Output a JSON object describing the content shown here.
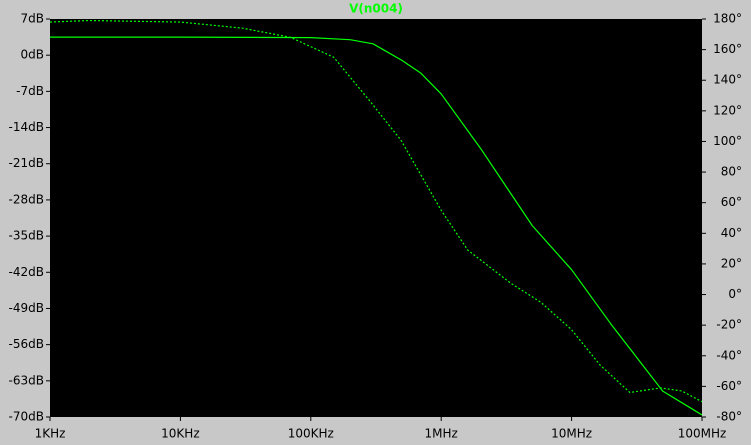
{
  "chart_data": {
    "type": "line",
    "title": "V(n004)",
    "xscale": "log",
    "xlim": [
      1000,
      100000000
    ],
    "xticks": [
      {
        "value": 1000,
        "label": "1KHz"
      },
      {
        "value": 10000,
        "label": "10KHz"
      },
      {
        "value": 100000,
        "label": "100KHz"
      },
      {
        "value": 1000000,
        "label": "1MHz"
      },
      {
        "value": 10000000,
        "label": "10MHz"
      },
      {
        "value": 100000000,
        "label": "100MHz"
      }
    ],
    "ylim": [
      -70,
      7
    ],
    "yticks": [
      {
        "value": 7,
        "label": "7dB"
      },
      {
        "value": 0,
        "label": "0dB"
      },
      {
        "value": -7,
        "label": "-7dB"
      },
      {
        "value": -14,
        "label": "-14dB"
      },
      {
        "value": -21,
        "label": "-21dB"
      },
      {
        "value": -28,
        "label": "-28dB"
      },
      {
        "value": -35,
        "label": "-35dB"
      },
      {
        "value": -42,
        "label": "-42dB"
      },
      {
        "value": -49,
        "label": "-49dB"
      },
      {
        "value": -56,
        "label": "-56dB"
      },
      {
        "value": -63,
        "label": "-63dB"
      },
      {
        "value": -70,
        "label": "-70dB"
      }
    ],
    "y2lim": [
      -80,
      180
    ],
    "y2ticks": [
      {
        "value": 180,
        "label": "180°"
      },
      {
        "value": 160,
        "label": "160°"
      },
      {
        "value": 140,
        "label": "140°"
      },
      {
        "value": 120,
        "label": "120°"
      },
      {
        "value": 100,
        "label": "100°"
      },
      {
        "value": 80,
        "label": "80°"
      },
      {
        "value": 60,
        "label": "60°"
      },
      {
        "value": 40,
        "label": "40°"
      },
      {
        "value": 20,
        "label": "20°"
      },
      {
        "value": 0,
        "label": "0°"
      },
      {
        "value": -20,
        "label": "-20°"
      },
      {
        "value": -40,
        "label": "-40°"
      },
      {
        "value": -60,
        "label": "-60°"
      },
      {
        "value": -80,
        "label": "-80°"
      }
    ],
    "background": "#000000",
    "series": [
      {
        "color": "#00ff00",
        "style": "solid",
        "axis": "y",
        "x": [
          1000,
          10000,
          100000,
          200000,
          300000,
          500000,
          700000,
          1000000,
          2000000,
          5000000,
          10000000,
          20000000,
          50000000,
          100000000
        ],
        "values": [
          3.5,
          3.5,
          3.4,
          3.0,
          2.2,
          -1,
          -3.5,
          -7.5,
          -18,
          -33,
          -41.5,
          -52,
          -65,
          -69.6
        ]
      },
      {
        "color": "#00ff00",
        "style": "dashed",
        "axis": "y2",
        "x": [
          1000,
          2000,
          10000,
          30000,
          70000,
          150000,
          280000,
          490000,
          1000000,
          1600000,
          3400000,
          5800000,
          10000000,
          16500000,
          28000000,
          48000000,
          70000000,
          100000000
        ],
        "values": [
          178,
          179,
          178,
          174,
          168,
          155,
          127,
          101,
          55,
          29,
          7.5,
          -5,
          -23,
          -46,
          -64,
          -61,
          -63,
          -70
        ]
      }
    ]
  }
}
